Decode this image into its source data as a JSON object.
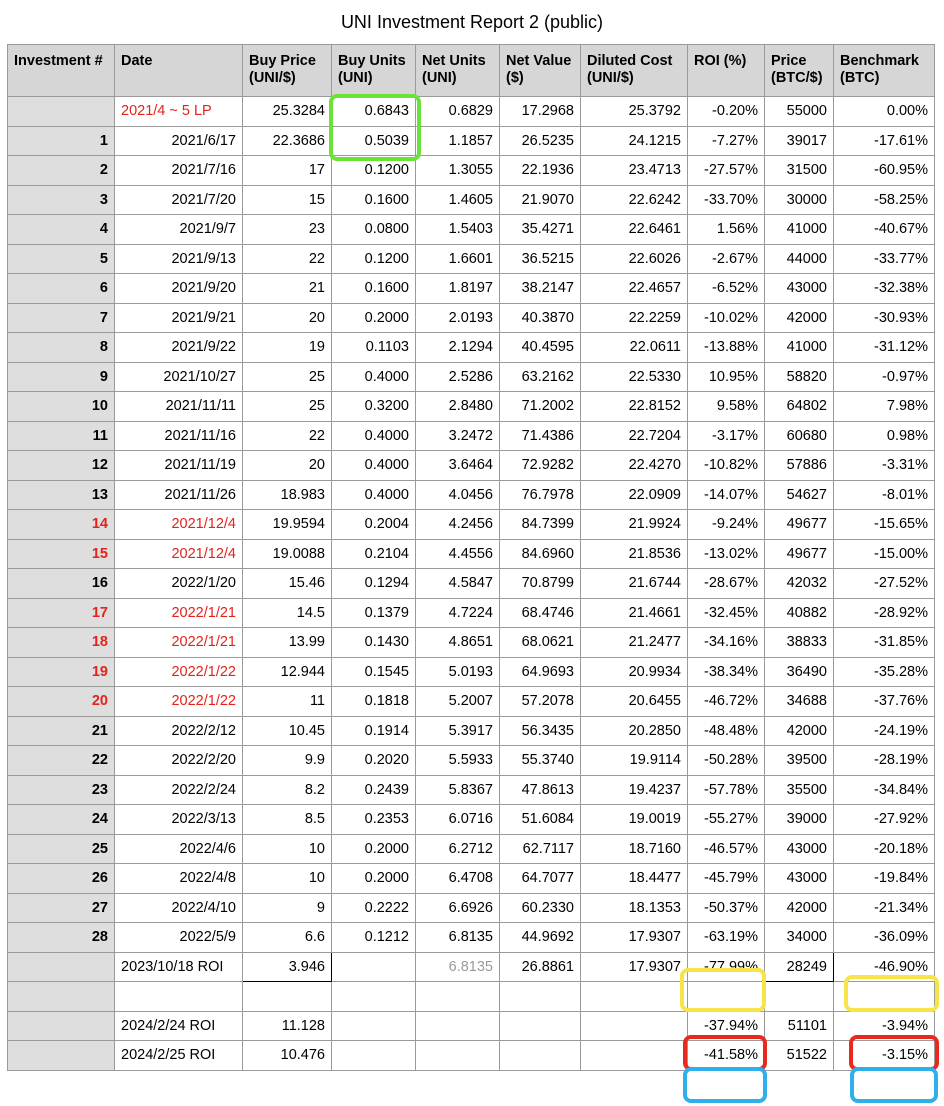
{
  "title": "UNI Investment Report 2 (public)",
  "headers": [
    "Investment #",
    "Date",
    "Buy Price (UNI/$)",
    "Buy Units (UNI)",
    "Net Units (UNI)",
    "Net Value ($)",
    "Diluted Cost (UNI/$)",
    "ROI (%)",
    "Price (BTC/$)",
    "Benchmark (BTC)"
  ],
  "rows": [
    {
      "idx": "",
      "date": "2021/4 ~ 5 LP",
      "buy_price": "25.3284",
      "buy_units": "0.6843",
      "net_units": "0.6829",
      "net_value": "17.2968",
      "diluted_cost": "25.3792",
      "roi": "-0.20%",
      "btc_price": "55000",
      "benchmark": "0.00%",
      "red": true,
      "date_left": true
    },
    {
      "idx": "1",
      "date": "2021/6/17",
      "buy_price": "22.3686",
      "buy_units": "0.5039",
      "net_units": "1.1857",
      "net_value": "26.5235",
      "diluted_cost": "24.1215",
      "roi": "-7.27%",
      "btc_price": "39017",
      "benchmark": "-17.61%"
    },
    {
      "idx": "2",
      "date": "2021/7/16",
      "buy_price": "17",
      "buy_units": "0.1200",
      "net_units": "1.3055",
      "net_value": "22.1936",
      "diluted_cost": "23.4713",
      "roi": "-27.57%",
      "btc_price": "31500",
      "benchmark": "-60.95%"
    },
    {
      "idx": "3",
      "date": "2021/7/20",
      "buy_price": "15",
      "buy_units": "0.1600",
      "net_units": "1.4605",
      "net_value": "21.9070",
      "diluted_cost": "22.6242",
      "roi": "-33.70%",
      "btc_price": "30000",
      "benchmark": "-58.25%"
    },
    {
      "idx": "4",
      "date": "2021/9/7",
      "buy_price": "23",
      "buy_units": "0.0800",
      "net_units": "1.5403",
      "net_value": "35.4271",
      "diluted_cost": "22.6461",
      "roi": "1.56%",
      "btc_price": "41000",
      "benchmark": "-40.67%"
    },
    {
      "idx": "5",
      "date": "2021/9/13",
      "buy_price": "22",
      "buy_units": "0.1200",
      "net_units": "1.6601",
      "net_value": "36.5215",
      "diluted_cost": "22.6026",
      "roi": "-2.67%",
      "btc_price": "44000",
      "benchmark": "-33.77%"
    },
    {
      "idx": "6",
      "date": "2021/9/20",
      "buy_price": "21",
      "buy_units": "0.1600",
      "net_units": "1.8197",
      "net_value": "38.2147",
      "diluted_cost": "22.4657",
      "roi": "-6.52%",
      "btc_price": "43000",
      "benchmark": "-32.38%"
    },
    {
      "idx": "7",
      "date": "2021/9/21",
      "buy_price": "20",
      "buy_units": "0.2000",
      "net_units": "2.0193",
      "net_value": "40.3870",
      "diluted_cost": "22.2259",
      "roi": "-10.02%",
      "btc_price": "42000",
      "benchmark": "-30.93%"
    },
    {
      "idx": "8",
      "date": "2021/9/22",
      "buy_price": "19",
      "buy_units": "0.1103",
      "net_units": "2.1294",
      "net_value": "40.4595",
      "diluted_cost": "22.0611",
      "roi": "-13.88%",
      "btc_price": "41000",
      "benchmark": "-31.12%"
    },
    {
      "idx": "9",
      "date": "2021/10/27",
      "buy_price": "25",
      "buy_units": "0.4000",
      "net_units": "2.5286",
      "net_value": "63.2162",
      "diluted_cost": "22.5330",
      "roi": "10.95%",
      "btc_price": "58820",
      "benchmark": "-0.97%"
    },
    {
      "idx": "10",
      "date": "2021/11/11",
      "buy_price": "25",
      "buy_units": "0.3200",
      "net_units": "2.8480",
      "net_value": "71.2002",
      "diluted_cost": "22.8152",
      "roi": "9.58%",
      "btc_price": "64802",
      "benchmark": "7.98%"
    },
    {
      "idx": "11",
      "date": "2021/11/16",
      "buy_price": "22",
      "buy_units": "0.4000",
      "net_units": "3.2472",
      "net_value": "71.4386",
      "diluted_cost": "22.7204",
      "roi": "-3.17%",
      "btc_price": "60680",
      "benchmark": "0.98%"
    },
    {
      "idx": "12",
      "date": "2021/11/19",
      "buy_price": "20",
      "buy_units": "0.4000",
      "net_units": "3.6464",
      "net_value": "72.9282",
      "diluted_cost": "22.4270",
      "roi": "-10.82%",
      "btc_price": "57886",
      "benchmark": "-3.31%"
    },
    {
      "idx": "13",
      "date": "2021/11/26",
      "buy_price": "18.983",
      "buy_units": "0.4000",
      "net_units": "4.0456",
      "net_value": "76.7978",
      "diluted_cost": "22.0909",
      "roi": "-14.07%",
      "btc_price": "54627",
      "benchmark": "-8.01%"
    },
    {
      "idx": "14",
      "date": "2021/12/4",
      "buy_price": "19.9594",
      "buy_units": "0.2004",
      "net_units": "4.2456",
      "net_value": "84.7399",
      "diluted_cost": "21.9924",
      "roi": "-9.24%",
      "btc_price": "49677",
      "benchmark": "-15.65%",
      "red": true
    },
    {
      "idx": "15",
      "date": "2021/12/4",
      "buy_price": "19.0088",
      "buy_units": "0.2104",
      "net_units": "4.4556",
      "net_value": "84.6960",
      "diluted_cost": "21.8536",
      "roi": "-13.02%",
      "btc_price": "49677",
      "benchmark": "-15.00%",
      "red": true
    },
    {
      "idx": "16",
      "date": "2022/1/20",
      "buy_price": "15.46",
      "buy_units": "0.1294",
      "net_units": "4.5847",
      "net_value": "70.8799",
      "diluted_cost": "21.6744",
      "roi": "-28.67%",
      "btc_price": "42032",
      "benchmark": "-27.52%"
    },
    {
      "idx": "17",
      "date": "2022/1/21",
      "buy_price": "14.5",
      "buy_units": "0.1379",
      "net_units": "4.7224",
      "net_value": "68.4746",
      "diluted_cost": "21.4661",
      "roi": "-32.45%",
      "btc_price": "40882",
      "benchmark": "-28.92%",
      "red": true
    },
    {
      "idx": "18",
      "date": "2022/1/21",
      "buy_price": "13.99",
      "buy_units": "0.1430",
      "net_units": "4.8651",
      "net_value": "68.0621",
      "diluted_cost": "21.2477",
      "roi": "-34.16%",
      "btc_price": "38833",
      "benchmark": "-31.85%",
      "red": true
    },
    {
      "idx": "19",
      "date": "2022/1/22",
      "buy_price": "12.944",
      "buy_units": "0.1545",
      "net_units": "5.0193",
      "net_value": "64.9693",
      "diluted_cost": "20.9934",
      "roi": "-38.34%",
      "btc_price": "36490",
      "benchmark": "-35.28%",
      "red": true
    },
    {
      "idx": "20",
      "date": "2022/1/22",
      "buy_price": "11",
      "buy_units": "0.1818",
      "net_units": "5.2007",
      "net_value": "57.2078",
      "diluted_cost": "20.6455",
      "roi": "-46.72%",
      "btc_price": "34688",
      "benchmark": "-37.76%",
      "red": true
    },
    {
      "idx": "21",
      "date": "2022/2/12",
      "buy_price": "10.45",
      "buy_units": "0.1914",
      "net_units": "5.3917",
      "net_value": "56.3435",
      "diluted_cost": "20.2850",
      "roi": "-48.48%",
      "btc_price": "42000",
      "benchmark": "-24.19%"
    },
    {
      "idx": "22",
      "date": "2022/2/20",
      "buy_price": "9.9",
      "buy_units": "0.2020",
      "net_units": "5.5933",
      "net_value": "55.3740",
      "diluted_cost": "19.9114",
      "roi": "-50.28%",
      "btc_price": "39500",
      "benchmark": "-28.19%"
    },
    {
      "idx": "23",
      "date": "2022/2/24",
      "buy_price": "8.2",
      "buy_units": "0.2439",
      "net_units": "5.8367",
      "net_value": "47.8613",
      "diluted_cost": "19.4237",
      "roi": "-57.78%",
      "btc_price": "35500",
      "benchmark": "-34.84%"
    },
    {
      "idx": "24",
      "date": "2022/3/13",
      "buy_price": "8.5",
      "buy_units": "0.2353",
      "net_units": "6.0716",
      "net_value": "51.6084",
      "diluted_cost": "19.0019",
      "roi": "-55.27%",
      "btc_price": "39000",
      "benchmark": "-27.92%"
    },
    {
      "idx": "25",
      "date": "2022/4/6",
      "buy_price": "10",
      "buy_units": "0.2000",
      "net_units": "6.2712",
      "net_value": "62.7117",
      "diluted_cost": "18.7160",
      "roi": "-46.57%",
      "btc_price": "43000",
      "benchmark": "-20.18%"
    },
    {
      "idx": "26",
      "date": "2022/4/8",
      "buy_price": "10",
      "buy_units": "0.2000",
      "net_units": "6.4708",
      "net_value": "64.7077",
      "diluted_cost": "18.4477",
      "roi": "-45.79%",
      "btc_price": "43000",
      "benchmark": "-19.84%"
    },
    {
      "idx": "27",
      "date": "2022/4/10",
      "buy_price": "9",
      "buy_units": "0.2222",
      "net_units": "6.6926",
      "net_value": "60.2330",
      "diluted_cost": "18.1353",
      "roi": "-50.37%",
      "btc_price": "42000",
      "benchmark": "-21.34%"
    },
    {
      "idx": "28",
      "date": "2022/5/9",
      "buy_price": "6.6",
      "buy_units": "0.1212",
      "net_units": "6.8135",
      "net_value": "44.9692",
      "diluted_cost": "17.9307",
      "roi": "-63.19%",
      "btc_price": "34000",
      "benchmark": "-36.09%"
    }
  ],
  "summary": {
    "roi_2023": {
      "label": "2023/10/18 ROI",
      "buy_price": "3.946",
      "net_units": "6.8135",
      "net_value": "26.8861",
      "diluted_cost": "17.9307",
      "roi": "-77.99%",
      "btc_price": "28249",
      "benchmark": "-46.90%"
    },
    "roi_2024_a": {
      "label": "2024/2/24 ROI",
      "buy_price": "11.128",
      "roi": "-37.94%",
      "btc_price": "51101",
      "benchmark": "-3.94%"
    },
    "roi_2024_b": {
      "label": "2024/2/25 ROI",
      "buy_price": "10.476",
      "roi": "-41.58%",
      "btc_price": "51522",
      "benchmark": "-3.15%"
    }
  },
  "highlight_colors": {
    "green": "#6be23a",
    "yellow": "#f7e34a",
    "red": "#e82a1e",
    "blue": "#2fb0ec"
  }
}
